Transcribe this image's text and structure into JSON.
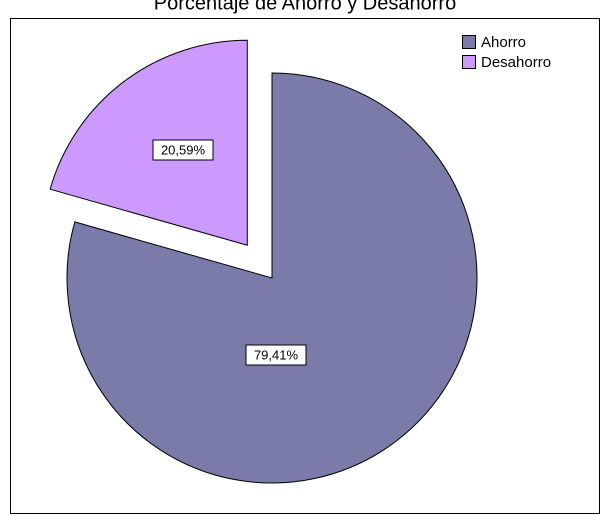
{
  "chart_data": {
    "type": "pie",
    "title": "Porcentaje de Ahorro y Desahorro",
    "categories": [
      "Ahorro",
      "Desahorro"
    ],
    "values": [
      79.41,
      20.59
    ],
    "value_labels": [
      "79,41%",
      "20,59%"
    ],
    "colors": [
      "#7b7ba9",
      "#cc99ff"
    ],
    "legend": "upper right"
  }
}
